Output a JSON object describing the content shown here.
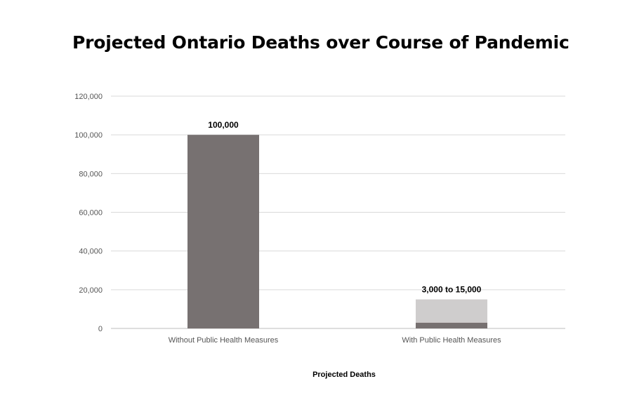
{
  "chart_data": {
    "type": "bar",
    "title": "Projected Ontario Deaths over Course of Pandemic",
    "xlabel": "Projected Deaths",
    "ylabel": "",
    "ylim": [
      0,
      120000
    ],
    "yticks": [
      0,
      20000,
      40000,
      60000,
      80000,
      100000,
      120000
    ],
    "ytick_labels": [
      "0",
      "20,000",
      "40,000",
      "60,000",
      "80,000",
      "100,000",
      "120,000"
    ],
    "grid": true,
    "categories": [
      "Without Public Health Measures",
      "With Public Health Measures"
    ],
    "bars": [
      {
        "category": "Without Public Health Measures",
        "low": 100000,
        "high": 100000,
        "label": "100,000"
      },
      {
        "category": "With Public Health Measures",
        "low": 3000,
        "high": 15000,
        "label": "3,000 to 15,000"
      }
    ],
    "colors": {
      "solid": "#777171",
      "range": "#cfcdcd",
      "grid": "#d9d9d9",
      "axis": "#bdbdbd"
    }
  }
}
